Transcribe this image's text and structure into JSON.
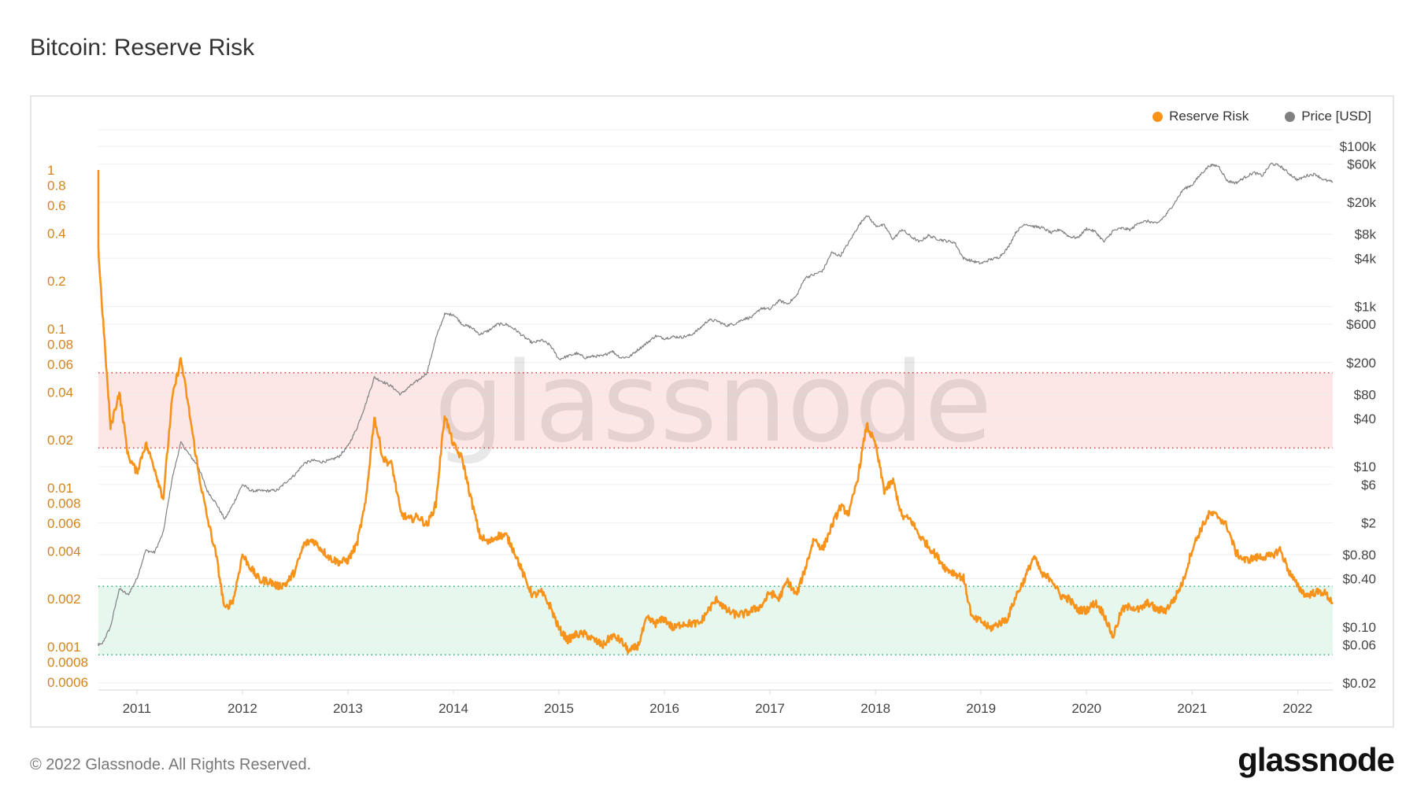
{
  "title": "Bitcoin: Reserve Risk",
  "footer": "© 2022 Glassnode. All Rights Reserved.",
  "logo": "glassnode",
  "watermark": "glassnode",
  "chart_data": {
    "type": "line",
    "title": "Bitcoin: Reserve Risk",
    "legend_position": "top-right",
    "grid": true,
    "x_ticks": [
      "2011",
      "2012",
      "2013",
      "2014",
      "2015",
      "2016",
      "2017",
      "2018",
      "2019",
      "2020",
      "2021",
      "2022"
    ],
    "xlim": [
      "2010-08-20",
      "2022-05-01"
    ],
    "y_left": {
      "scale": "log",
      "lim": [
        0.00055,
        1.8
      ],
      "color": "#d4841c",
      "ticks": [
        1,
        0.8,
        0.6,
        0.4,
        0.2,
        0.1,
        0.08,
        0.06,
        0.04,
        0.02,
        0.01,
        0.008,
        0.006,
        0.004,
        0.002,
        0.001,
        0.0008,
        0.0006
      ],
      "tick_labels": [
        "1",
        "0.8",
        "0.6",
        "0.4",
        "0.2",
        "0.1",
        "0.08",
        "0.06",
        "0.04",
        "0.02",
        "0.01",
        "0.008",
        "0.006",
        "0.004",
        "0.002",
        "0.001",
        "0.0008",
        "0.0006"
      ]
    },
    "y_right": {
      "scale": "log",
      "lim": [
        0.016,
        160000
      ],
      "ticks": [
        100000,
        60000,
        20000,
        8000,
        4000,
        1000,
        600,
        200,
        80,
        40,
        10,
        6,
        2,
        0.8,
        0.4,
        0.1,
        0.06,
        0.02
      ],
      "tick_labels": [
        "$100k",
        "$60k",
        "$20k",
        "$8k",
        "$4k",
        "$1k",
        "$600",
        "$200",
        "$80",
        "$40",
        "$10",
        "$6",
        "$2",
        "$0.80",
        "$0.40",
        "$0.10",
        "$0.06",
        "$0.02"
      ]
    },
    "bands": [
      {
        "from": 0.0178,
        "to": 0.053,
        "fill": "#fde6e6",
        "line": "#e04040"
      },
      {
        "from": 0.00089,
        "to": 0.0024,
        "fill": "#e6f7ee",
        "line": "#22b07a"
      }
    ],
    "series": [
      {
        "name": "Reserve Risk",
        "axis": "left",
        "color": "#f7931a",
        "x": [
          "2010-08",
          "2010-09",
          "2010-10",
          "2010-11",
          "2010-12",
          "2011-01",
          "2011-02",
          "2011-03",
          "2011-04",
          "2011-05",
          "2011-06",
          "2011-07",
          "2011-08",
          "2011-09",
          "2011-10",
          "2011-11",
          "2011-12",
          "2012-01",
          "2012-02",
          "2012-03",
          "2012-04",
          "2012-05",
          "2012-06",
          "2012-07",
          "2012-08",
          "2012-09",
          "2012-10",
          "2012-11",
          "2012-12",
          "2013-01",
          "2013-02",
          "2013-03",
          "2013-04",
          "2013-05",
          "2013-06",
          "2013-07",
          "2013-08",
          "2013-09",
          "2013-10",
          "2013-11",
          "2013-12",
          "2014-01",
          "2014-02",
          "2014-03",
          "2014-04",
          "2014-05",
          "2014-06",
          "2014-07",
          "2014-08",
          "2014-09",
          "2014-10",
          "2014-11",
          "2014-12",
          "2015-01",
          "2015-02",
          "2015-03",
          "2015-04",
          "2015-05",
          "2015-06",
          "2015-07",
          "2015-08",
          "2015-09",
          "2015-10",
          "2015-11",
          "2015-12",
          "2016-01",
          "2016-02",
          "2016-03",
          "2016-04",
          "2016-05",
          "2016-06",
          "2016-07",
          "2016-08",
          "2016-09",
          "2016-10",
          "2016-11",
          "2016-12",
          "2017-01",
          "2017-02",
          "2017-03",
          "2017-04",
          "2017-05",
          "2017-06",
          "2017-07",
          "2017-08",
          "2017-09",
          "2017-10",
          "2017-11",
          "2017-12",
          "2018-01",
          "2018-02",
          "2018-03",
          "2018-04",
          "2018-05",
          "2018-06",
          "2018-07",
          "2018-08",
          "2018-09",
          "2018-10",
          "2018-11",
          "2018-12",
          "2019-01",
          "2019-02",
          "2019-03",
          "2019-04",
          "2019-05",
          "2019-06",
          "2019-07",
          "2019-08",
          "2019-09",
          "2019-10",
          "2019-11",
          "2019-12",
          "2020-01",
          "2020-02",
          "2020-03",
          "2020-04",
          "2020-05",
          "2020-06",
          "2020-07",
          "2020-08",
          "2020-09",
          "2020-10",
          "2020-11",
          "2020-12",
          "2021-01",
          "2021-02",
          "2021-03",
          "2021-04",
          "2021-05",
          "2021-06",
          "2021-07",
          "2021-08",
          "2021-09",
          "2021-10",
          "2021-11",
          "2021-12",
          "2022-01",
          "2022-02",
          "2022-03",
          "2022-04",
          "2022-05"
        ],
        "y": [
          1.0,
          0.15,
          0.024,
          0.04,
          0.016,
          0.0125,
          0.019,
          0.0134,
          0.0085,
          0.036,
          0.065,
          0.029,
          0.0125,
          0.0065,
          0.0038,
          0.0017,
          0.002,
          0.0038,
          0.0031,
          0.0026,
          0.0026,
          0.0024,
          0.0025,
          0.003,
          0.0044,
          0.0047,
          0.0041,
          0.0036,
          0.0034,
          0.0035,
          0.0044,
          0.0079,
          0.028,
          0.0152,
          0.014,
          0.0069,
          0.0063,
          0.0066,
          0.0058,
          0.0079,
          0.029,
          0.0186,
          0.0152,
          0.0085,
          0.005,
          0.0045,
          0.005,
          0.005,
          0.0039,
          0.0028,
          0.0021,
          0.0022,
          0.0018,
          0.0013,
          0.0011,
          0.0012,
          0.0012,
          0.0011,
          0.00102,
          0.00117,
          0.0011,
          0.00093,
          0.00102,
          0.0015,
          0.0014,
          0.0015,
          0.0013,
          0.0014,
          0.0014,
          0.0014,
          0.0017,
          0.002,
          0.0017,
          0.0016,
          0.0016,
          0.0017,
          0.0018,
          0.0022,
          0.002,
          0.0026,
          0.0021,
          0.0031,
          0.0048,
          0.0041,
          0.0057,
          0.0076,
          0.0069,
          0.0117,
          0.025,
          0.0186,
          0.0096,
          0.011,
          0.0066,
          0.0063,
          0.005,
          0.0043,
          0.0037,
          0.0031,
          0.0029,
          0.0027,
          0.0015,
          0.00145,
          0.0013,
          0.0014,
          0.0015,
          0.0021,
          0.0027,
          0.0037,
          0.0028,
          0.0027,
          0.0021,
          0.002,
          0.0017,
          0.0017,
          0.0019,
          0.0016,
          0.00115,
          0.0017,
          0.0018,
          0.0017,
          0.0019,
          0.0017,
          0.0017,
          0.002,
          0.0026,
          0.0041,
          0.0055,
          0.0069,
          0.0066,
          0.0057,
          0.0039,
          0.0035,
          0.0036,
          0.0037,
          0.0037,
          0.0041,
          0.003,
          0.0024,
          0.0021,
          0.0022,
          0.0022,
          0.0019
        ]
      },
      {
        "name": "Price [USD]",
        "axis": "right",
        "color": "#808080",
        "x": [
          "2010-08",
          "2010-09",
          "2010-10",
          "2010-11",
          "2010-12",
          "2011-01",
          "2011-02",
          "2011-03",
          "2011-04",
          "2011-05",
          "2011-06",
          "2011-07",
          "2011-08",
          "2011-09",
          "2011-10",
          "2011-11",
          "2011-12",
          "2012-01",
          "2012-02",
          "2012-03",
          "2012-04",
          "2012-05",
          "2012-06",
          "2012-07",
          "2012-08",
          "2012-09",
          "2012-10",
          "2012-11",
          "2012-12",
          "2013-01",
          "2013-02",
          "2013-03",
          "2013-04",
          "2013-05",
          "2013-06",
          "2013-07",
          "2013-08",
          "2013-09",
          "2013-10",
          "2013-11",
          "2013-12",
          "2014-01",
          "2014-02",
          "2014-03",
          "2014-04",
          "2014-05",
          "2014-06",
          "2014-07",
          "2014-08",
          "2014-09",
          "2014-10",
          "2014-11",
          "2014-12",
          "2015-01",
          "2015-02",
          "2015-03",
          "2015-04",
          "2015-05",
          "2015-06",
          "2015-07",
          "2015-08",
          "2015-09",
          "2015-10",
          "2015-11",
          "2015-12",
          "2016-01",
          "2016-02",
          "2016-03",
          "2016-04",
          "2016-05",
          "2016-06",
          "2016-07",
          "2016-08",
          "2016-09",
          "2016-10",
          "2016-11",
          "2016-12",
          "2017-01",
          "2017-02",
          "2017-03",
          "2017-04",
          "2017-05",
          "2017-06",
          "2017-07",
          "2017-08",
          "2017-09",
          "2017-10",
          "2017-11",
          "2017-12",
          "2018-01",
          "2018-02",
          "2018-03",
          "2018-04",
          "2018-05",
          "2018-06",
          "2018-07",
          "2018-08",
          "2018-09",
          "2018-10",
          "2018-11",
          "2018-12",
          "2019-01",
          "2019-02",
          "2019-03",
          "2019-04",
          "2019-05",
          "2019-06",
          "2019-07",
          "2019-08",
          "2019-09",
          "2019-10",
          "2019-11",
          "2019-12",
          "2020-01",
          "2020-02",
          "2020-03",
          "2020-04",
          "2020-05",
          "2020-06",
          "2020-07",
          "2020-08",
          "2020-09",
          "2020-10",
          "2020-11",
          "2020-12",
          "2021-01",
          "2021-02",
          "2021-03",
          "2021-04",
          "2021-05",
          "2021-06",
          "2021-07",
          "2021-08",
          "2021-09",
          "2021-10",
          "2021-11",
          "2021-12",
          "2022-01",
          "2022-02",
          "2022-03",
          "2022-04",
          "2022-05"
        ],
        "y": [
          0.06,
          0.06,
          0.1,
          0.3,
          0.25,
          0.4,
          0.9,
          0.85,
          1.5,
          7,
          20,
          14,
          10,
          5,
          3.5,
          2.2,
          3.5,
          6,
          5,
          5,
          5,
          5.1,
          6.5,
          8,
          11,
          12,
          11.5,
          12,
          13.5,
          18,
          30,
          60,
          130,
          115,
          100,
          80,
          100,
          120,
          150,
          400,
          800,
          800,
          600,
          550,
          450,
          500,
          600,
          600,
          520,
          420,
          350,
          380,
          330,
          220,
          240,
          260,
          230,
          240,
          240,
          280,
          230,
          235,
          290,
          350,
          430,
          400,
          420,
          415,
          440,
          530,
          680,
          660,
          580,
          610,
          700,
          740,
          960,
          920,
          1190,
          1080,
          1350,
          2300,
          2500,
          2800,
          4700,
          4300,
          6400,
          9900,
          14000,
          10200,
          10300,
          6900,
          9200,
          7500,
          6400,
          7700,
          7000,
          6600,
          6300,
          4000,
          3700,
          3450,
          3850,
          4100,
          5300,
          8600,
          10800,
          10000,
          9600,
          8300,
          9200,
          7500,
          7200,
          9400,
          8600,
          6400,
          8800,
          9500,
          9100,
          11300,
          11600,
          10800,
          13800,
          19700,
          29000,
          33000,
          45000,
          58000,
          57000,
          37000,
          35000,
          41000,
          47000,
          43000,
          61000,
          57000,
          46000,
          38000,
          43000,
          45000,
          38000,
          36000
        ]
      }
    ]
  }
}
